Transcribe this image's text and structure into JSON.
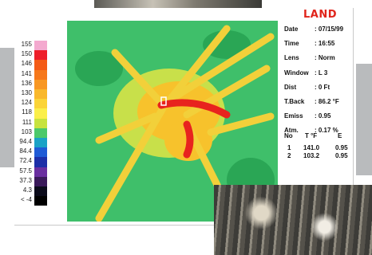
{
  "logo": "LAND",
  "scale": {
    "labels": [
      "155",
      "150",
      "146",
      "141",
      "136",
      "130",
      "124",
      "118",
      "111",
      "103",
      "94.4",
      "84.4",
      "72.4",
      "57.5",
      "37.3",
      "4.3",
      "< -4"
    ],
    "colors": [
      "#f4a9cf",
      "#ee1f2a",
      "#f45a16",
      "#f6781b",
      "#f89722",
      "#f9b82b",
      "#fbd437",
      "#fbef49",
      "#c7e33e",
      "#4cc96a",
      "#1aa2c6",
      "#1f5bd6",
      "#1d2fa8",
      "#6a2fa0",
      "#3a1a5a",
      "#0b0b1a",
      "#000000"
    ]
  },
  "info": [
    {
      "key": "Date",
      "value": ": 07/15/99"
    },
    {
      "key": "Time",
      "value": ": 16:55"
    },
    {
      "key": "Lens",
      "value": ": Norm"
    },
    {
      "key": "Window",
      "value": ": L  3"
    },
    {
      "key": "Dist",
      "value": ": 0 Ft"
    },
    {
      "key": "T.Back",
      "value": ": 86.2 °F"
    },
    {
      "key": "Emiss",
      "value": ": 0.95"
    },
    {
      "key": "Atm.",
      "value": ": 0.17 %"
    }
  ],
  "table": {
    "headers": [
      "No",
      "T °F",
      "E"
    ],
    "rows": [
      [
        "1",
        "141.0",
        "0.95"
      ],
      [
        "2",
        "103.2",
        "0.95"
      ]
    ]
  }
}
